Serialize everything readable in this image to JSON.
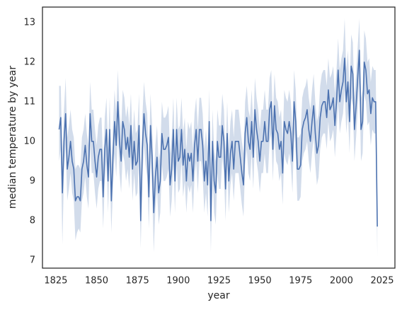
{
  "chart_data": {
    "type": "line",
    "xlabel": "year",
    "ylabel": "median temperature by year",
    "color": "#4c72b0",
    "xlim": [
      1816.8,
      2032.8
    ],
    "xticks": [
      1825,
      1850,
      1875,
      1900,
      1925,
      1950,
      1975,
      2000,
      2025
    ],
    "ylim": [
      6.8,
      13.39
    ],
    "yticks": [
      7,
      8,
      9,
      10,
      11,
      12,
      13
    ],
    "grid": false,
    "x": [
      1827,
      1828,
      1829,
      1830,
      1831,
      1832,
      1833,
      1834,
      1835,
      1836,
      1837,
      1838,
      1839,
      1840,
      1841,
      1842,
      1843,
      1844,
      1845,
      1846,
      1847,
      1848,
      1849,
      1850,
      1851,
      1852,
      1853,
      1854,
      1855,
      1856,
      1857,
      1858,
      1859,
      1860,
      1861,
      1862,
      1863,
      1864,
      1865,
      1866,
      1867,
      1868,
      1869,
      1870,
      1871,
      1872,
      1873,
      1874,
      1875,
      1876,
      1877,
      1878,
      1879,
      1880,
      1881,
      1882,
      1883,
      1884,
      1885,
      1886,
      1887,
      1888,
      1889,
      1890,
      1891,
      1892,
      1893,
      1894,
      1895,
      1896,
      1897,
      1898,
      1899,
      1900,
      1901,
      1902,
      1903,
      1904,
      1905,
      1906,
      1907,
      1908,
      1909,
      1910,
      1911,
      1912,
      1913,
      1914,
      1915,
      1916,
      1917,
      1918,
      1919,
      1920,
      1921,
      1922,
      1923,
      1924,
      1925,
      1926,
      1927,
      1928,
      1929,
      1930,
      1931,
      1932,
      1933,
      1934,
      1935,
      1936,
      1937,
      1938,
      1939,
      1940,
      1941,
      1942,
      1943,
      1944,
      1945,
      1946,
      1947,
      1948,
      1949,
      1950,
      1951,
      1952,
      1953,
      1954,
      1955,
      1956,
      1957,
      1958,
      1959,
      1960,
      1961,
      1962,
      1963,
      1964,
      1965,
      1966,
      1967,
      1968,
      1969,
      1970,
      1971,
      1972,
      1973,
      1974,
      1975,
      1976,
      1977,
      1978,
      1979,
      1980,
      1981,
      1982,
      1983,
      1984,
      1985,
      1986,
      1987,
      1988,
      1989,
      1990,
      1991,
      1992,
      1993,
      1994,
      1995,
      1996,
      1997,
      1998,
      1999,
      2000,
      2001,
      2002,
      2003,
      2004,
      2005,
      2006,
      2007,
      2008,
      2009,
      2010,
      2011,
      2012,
      2013,
      2014,
      2015,
      2016,
      2017,
      2018,
      2019,
      2020,
      2021,
      2022
    ],
    "values": [
      10.3,
      10.6,
      8.7,
      10.0,
      10.7,
      9.3,
      9.6,
      10.0,
      9.5,
      9.3,
      8.5,
      8.6,
      8.6,
      8.5,
      9.3,
      9.5,
      9.9,
      9.4,
      9.1,
      10.7,
      10.0,
      10.0,
      9.5,
      9.1,
      9.6,
      9.8,
      9.8,
      8.6,
      9.8,
      10.3,
      9.0,
      10.3,
      8.5,
      9.6,
      10.5,
      9.9,
      11.0,
      10.0,
      9.5,
      10.5,
      10.3,
      9.8,
      10.1,
      9.6,
      10.4,
      9.3,
      10.0,
      9.4,
      9.5,
      10.4,
      8.0,
      9.8,
      10.7,
      10.2,
      9.9,
      8.6,
      10.4,
      9.6,
      8.2,
      9.1,
      9.6,
      8.7,
      9.0,
      10.2,
      9.8,
      9.8,
      9.9,
      10.1,
      8.9,
      9.3,
      10.3,
      9.0,
      10.3,
      9.5,
      9.6,
      10.3,
      9.4,
      9.8,
      9.0,
      9.7,
      9.5,
      9.7,
      9.0,
      9.9,
      10.3,
      9.5,
      10.3,
      10.3,
      9.9,
      9.0,
      9.5,
      8.9,
      10.5,
      8.0,
      10.0,
      9.0,
      8.7,
      10.0,
      9.6,
      9.6,
      10.4,
      10.0,
      8.8,
      10.2,
      9.0,
      9.7,
      10.0,
      9.3,
      10.0,
      10.0,
      10.0,
      9.6,
      9.2,
      8.9,
      10.2,
      10.6,
      10.0,
      9.8,
      10.5,
      9.6,
      10.8,
      10.3,
      10.0,
      9.5,
      10.0,
      10.0,
      10.5,
      10.0,
      10.0,
      10.8,
      11.0,
      9.8,
      10.9,
      10.3,
      10.2,
      9.8,
      10.0,
      9.2,
      10.5,
      10.3,
      10.2,
      10.5,
      10.2,
      9.5,
      11.0,
      10.5,
      9.3,
      9.3,
      9.4,
      10.3,
      10.5,
      10.6,
      10.8,
      10.3,
      10.0,
      10.5,
      10.9,
      10.2,
      9.7,
      9.9,
      10.6,
      10.9,
      11.0,
      11.0,
      10.6,
      11.3,
      10.8,
      10.9,
      11.1,
      10.4,
      11.0,
      11.8,
      11.0,
      11.3,
      11.5,
      12.1,
      11.0,
      11.5,
      10.5,
      11.9,
      11.7,
      10.3,
      10.9,
      11.6,
      12.3,
      10.3,
      10.5,
      12.0,
      11.8,
      11.2,
      11.3,
      10.7,
      11.1,
      11.0,
      11.0,
      7.85
    ],
    "ci_lower": [
      9.5,
      9.8,
      7.4,
      9.2,
      9.9,
      8.5,
      8.8,
      9.2,
      8.7,
      8.5,
      7.5,
      7.7,
      7.8,
      7.7,
      8.5,
      8.7,
      9.1,
      8.6,
      8.3,
      9.9,
      9.2,
      9.2,
      8.7,
      8.3,
      8.8,
      9.0,
      9.0,
      7.8,
      9.0,
      9.5,
      8.2,
      9.5,
      7.7,
      8.8,
      9.7,
      9.1,
      10.2,
      9.2,
      8.7,
      9.7,
      9.5,
      9.0,
      9.3,
      8.8,
      9.6,
      8.5,
      9.2,
      8.6,
      8.7,
      9.6,
      7.3,
      9.0,
      9.9,
      9.4,
      9.1,
      7.8,
      9.6,
      8.8,
      7.2,
      8.3,
      8.8,
      7.9,
      8.2,
      9.4,
      9.0,
      9.0,
      9.1,
      9.3,
      8.1,
      8.5,
      9.5,
      8.2,
      9.5,
      8.7,
      8.8,
      9.5,
      8.6,
      9.0,
      8.2,
      8.9,
      8.7,
      8.9,
      8.2,
      9.1,
      9.5,
      8.7,
      9.5,
      9.5,
      9.1,
      8.2,
      8.7,
      8.1,
      9.7,
      7.2,
      9.2,
      8.2,
      7.9,
      9.2,
      8.8,
      8.8,
      9.6,
      9.2,
      8.0,
      9.4,
      8.2,
      8.9,
      9.2,
      8.5,
      9.2,
      9.2,
      9.2,
      8.8,
      8.4,
      8.1,
      9.4,
      9.8,
      9.2,
      9.0,
      9.7,
      8.8,
      10.0,
      9.5,
      9.2,
      8.7,
      9.2,
      9.2,
      9.7,
      9.2,
      9.2,
      10.0,
      10.2,
      9.0,
      10.1,
      9.5,
      9.4,
      9.0,
      9.2,
      8.4,
      9.7,
      9.5,
      9.4,
      9.7,
      9.4,
      8.7,
      10.2,
      9.7,
      8.5,
      8.5,
      8.6,
      9.5,
      9.7,
      9.8,
      10.0,
      9.5,
      9.2,
      9.7,
      10.1,
      9.4,
      8.9,
      9.1,
      9.8,
      10.1,
      10.2,
      10.2,
      9.8,
      10.5,
      10.0,
      10.1,
      10.3,
      9.6,
      10.2,
      11.0,
      10.2,
      10.5,
      10.7,
      11.3,
      10.2,
      10.7,
      9.7,
      11.1,
      10.9,
      9.5,
      10.1,
      10.8,
      11.5,
      9.5,
      9.7,
      11.2,
      11.0,
      10.4,
      10.5,
      9.9,
      10.3,
      10.2,
      10.2,
      7.1
    ],
    "ci_upper": [
      11.4,
      11.4,
      9.6,
      10.8,
      11.6,
      10.1,
      10.4,
      10.8,
      10.3,
      10.1,
      9.3,
      9.4,
      9.4,
      9.3,
      10.1,
      10.3,
      10.7,
      10.2,
      9.9,
      11.5,
      10.8,
      10.8,
      10.3,
      9.9,
      10.4,
      10.6,
      10.6,
      9.4,
      10.6,
      11.1,
      9.8,
      11.1,
      9.3,
      10.4,
      11.3,
      10.7,
      11.8,
      10.8,
      10.3,
      11.3,
      11.1,
      10.6,
      10.9,
      10.4,
      11.2,
      10.1,
      10.8,
      10.2,
      10.3,
      11.2,
      8.8,
      10.6,
      11.5,
      11.0,
      10.7,
      9.4,
      11.2,
      10.4,
      9.0,
      9.9,
      10.4,
      9.5,
      9.8,
      11.0,
      10.6,
      10.6,
      10.7,
      10.9,
      9.7,
      10.1,
      11.1,
      9.8,
      11.1,
      10.3,
      10.4,
      11.1,
      10.2,
      10.6,
      9.8,
      10.5,
      10.3,
      10.5,
      9.8,
      10.7,
      11.1,
      10.3,
      11.1,
      11.1,
      10.7,
      9.8,
      10.3,
      9.7,
      11.3,
      8.8,
      10.8,
      9.8,
      9.5,
      10.8,
      10.4,
      10.4,
      11.2,
      10.8,
      9.6,
      11.0,
      9.8,
      10.5,
      10.8,
      10.1,
      10.8,
      10.8,
      10.8,
      10.4,
      10.0,
      9.7,
      11.0,
      11.4,
      10.8,
      10.6,
      11.3,
      10.4,
      11.6,
      11.1,
      10.8,
      10.3,
      10.8,
      10.8,
      11.3,
      10.8,
      10.8,
      11.6,
      11.8,
      10.6,
      11.7,
      11.1,
      11.0,
      10.6,
      10.8,
      10.0,
      11.3,
      11.1,
      11.0,
      11.3,
      11.0,
      10.3,
      11.8,
      11.3,
      10.1,
      10.1,
      10.2,
      11.1,
      11.3,
      11.4,
      11.6,
      11.1,
      10.8,
      11.3,
      11.7,
      11.0,
      10.5,
      10.7,
      11.4,
      11.7,
      11.8,
      11.8,
      11.4,
      12.1,
      11.6,
      11.7,
      11.9,
      11.2,
      11.8,
      12.6,
      11.8,
      12.1,
      12.3,
      13.1,
      11.8,
      12.3,
      11.3,
      12.7,
      12.5,
      11.1,
      11.7,
      12.4,
      13.1,
      11.1,
      11.3,
      12.8,
      12.6,
      12.0,
      12.1,
      11.5,
      11.9,
      11.8,
      11.8,
      8.6
    ]
  }
}
